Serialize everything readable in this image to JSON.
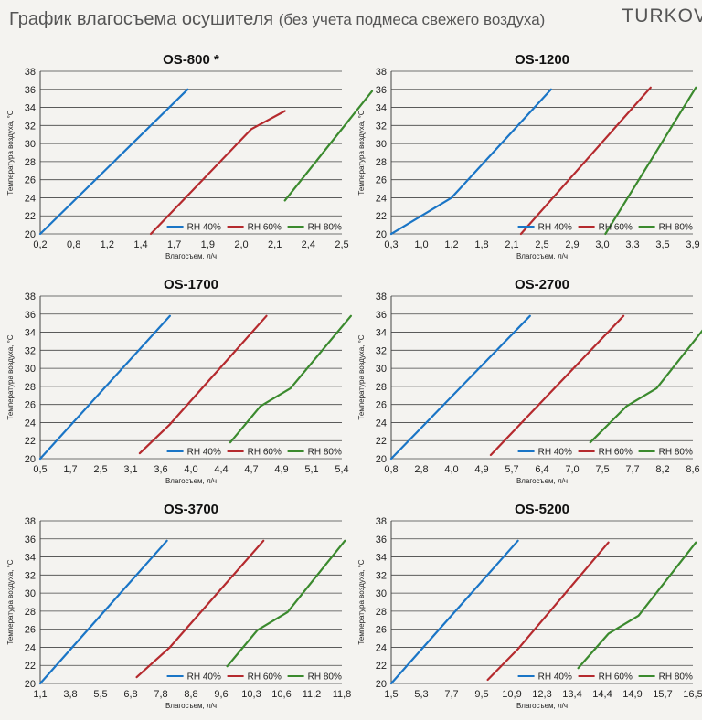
{
  "header": {
    "title": "График влагосъема осушителя",
    "subtitle": "(без учета подмеса свежего воздуха)",
    "brand": "TURKOV"
  },
  "colors": {
    "rh40": "#1a75c6",
    "rh60": "#b52a2e",
    "rh80": "#3b8a2e",
    "grid": "#444444"
  },
  "chart_data": [
    {
      "type": "line",
      "title": "OS-800 *",
      "xlabel": "Влагосъем, л/ч",
      "ylabel": "Температура воздуха, °С",
      "x_ticks": [
        "0,2",
        "0,8",
        "1,2",
        "1,4",
        "1,7",
        "1,9",
        "2,0",
        "2,1",
        "2,4",
        "2,5"
      ],
      "y_ticks": [
        20,
        22,
        24,
        26,
        28,
        30,
        32,
        34,
        36,
        38
      ],
      "ylim": [
        20,
        38
      ],
      "legend": [
        "RH 40%",
        "RH 60%",
        "RH 80%"
      ],
      "series": [
        {
          "name": "RH 40%",
          "points": [
            [
              0,
              20
            ],
            [
              4.4,
              36
            ]
          ]
        },
        {
          "name": "RH 60%",
          "points": [
            [
              3.3,
              20
            ],
            [
              6.3,
              31.6
            ],
            [
              7.3,
              33.6
            ]
          ]
        },
        {
          "name": "RH 80%",
          "points": [
            [
              7.3,
              23.7
            ],
            [
              9.9,
              35.8
            ]
          ]
        }
      ]
    },
    {
      "type": "line",
      "title": "OS-1200",
      "xlabel": "Влагосъем, л/ч",
      "ylabel": "Температура воздуха, °С",
      "x_ticks": [
        "0,3",
        "1,0",
        "1,2",
        "1,8",
        "2,1",
        "2,5",
        "2,9",
        "3,0",
        "3,3",
        "3,5",
        "3,9"
      ],
      "y_ticks": [
        20,
        22,
        24,
        26,
        28,
        30,
        32,
        34,
        36,
        38
      ],
      "ylim": [
        20,
        38
      ],
      "legend": [
        "RH 40%",
        "RH 60%",
        "RH 80%"
      ],
      "series": [
        {
          "name": "RH 40%",
          "points": [
            [
              0,
              20
            ],
            [
              2,
              24
            ],
            [
              5.3,
              36
            ]
          ]
        },
        {
          "name": "RH 60%",
          "points": [
            [
              4.3,
              20
            ],
            [
              8.6,
              36.2
            ]
          ]
        },
        {
          "name": "RH 80%",
          "points": [
            [
              7.1,
              20
            ],
            [
              10.1,
              36.2
            ]
          ]
        }
      ]
    },
    {
      "type": "line",
      "title": "OS-1700",
      "xlabel": "Влагосъем, л/ч",
      "ylabel": "Температура воздуха, °С",
      "x_ticks": [
        "0,5",
        "1,7",
        "2,5",
        "3,1",
        "3,6",
        "4,0",
        "4,4",
        "4,7",
        "4,9",
        "5,1",
        "5,4"
      ],
      "y_ticks": [
        20,
        22,
        24,
        26,
        28,
        30,
        32,
        34,
        36,
        38
      ],
      "ylim": [
        20,
        38
      ],
      "legend": [
        "RH 40%",
        "RH 60%",
        "RH 80%"
      ],
      "series": [
        {
          "name": "RH 40%",
          "points": [
            [
              0,
              20
            ],
            [
              4.3,
              35.8
            ]
          ]
        },
        {
          "name": "RH 60%",
          "points": [
            [
              3.3,
              20.6
            ],
            [
              4.3,
              23.8
            ],
            [
              7.5,
              35.8
            ]
          ]
        },
        {
          "name": "RH 80%",
          "points": [
            [
              6.3,
              21.8
            ],
            [
              7.3,
              25.8
            ],
            [
              8.3,
              27.8
            ],
            [
              10.3,
              35.8
            ]
          ]
        }
      ]
    },
    {
      "type": "line",
      "title": "OS-2700",
      "xlabel": "Влагосъем, л/ч",
      "ylabel": "Температура воздуха, °С",
      "x_ticks": [
        "0,8",
        "2,8",
        "4,0",
        "4,9",
        "5,7",
        "6,4",
        "7,0",
        "7,5",
        "7,7",
        "8,2",
        "8,6"
      ],
      "y_ticks": [
        20,
        22,
        24,
        26,
        28,
        30,
        32,
        34,
        36,
        38
      ],
      "ylim": [
        20,
        38
      ],
      "legend": [
        "RH 40%",
        "RH 60%",
        "RH 80%"
      ],
      "series": [
        {
          "name": "RH 40%",
          "points": [
            [
              0,
              20
            ],
            [
              4.6,
              35.8
            ]
          ]
        },
        {
          "name": "RH 60%",
          "points": [
            [
              3.3,
              20.4
            ],
            [
              7.7,
              35.8
            ]
          ]
        },
        {
          "name": "RH 80%",
          "points": [
            [
              6.6,
              21.8
            ],
            [
              7.8,
              25.8
            ],
            [
              8.8,
              27.8
            ],
            [
              10.7,
              35.8
            ]
          ]
        }
      ]
    },
    {
      "type": "line",
      "title": "OS-3700",
      "xlabel": "Влагосъем, л/ч",
      "ylabel": "Температура воздуха, °С",
      "x_ticks": [
        "1,1",
        "3,8",
        "5,5",
        "6,8",
        "7,8",
        "8,8",
        "9,6",
        "10,3",
        "10,6",
        "11,2",
        "11,8"
      ],
      "y_ticks": [
        20,
        22,
        24,
        26,
        28,
        30,
        32,
        34,
        36,
        38
      ],
      "ylim": [
        20,
        38
      ],
      "legend": [
        "RH 40%",
        "RH 60%",
        "RH 80%"
      ],
      "series": [
        {
          "name": "RH 40%",
          "points": [
            [
              0,
              20
            ],
            [
              4.2,
              35.8
            ]
          ]
        },
        {
          "name": "RH 60%",
          "points": [
            [
              3.2,
              20.7
            ],
            [
              4.3,
              24
            ],
            [
              7.4,
              35.8
            ]
          ]
        },
        {
          "name": "RH 80%",
          "points": [
            [
              6.2,
              21.9
            ],
            [
              7.2,
              25.9
            ],
            [
              8.2,
              27.9
            ],
            [
              10.1,
              35.8
            ]
          ]
        }
      ]
    },
    {
      "type": "line",
      "title": "OS-5200",
      "xlabel": "Влагосъем, л/ч",
      "ylabel": "Температура воздуха, °С",
      "x_ticks": [
        "1,5",
        "5,3",
        "7,7",
        "9,5",
        "10,9",
        "12,3",
        "13,4",
        "14,4",
        "14,9",
        "15,7",
        "16,5"
      ],
      "y_ticks": [
        20,
        22,
        24,
        26,
        28,
        30,
        32,
        34,
        36,
        38
      ],
      "ylim": [
        20,
        38
      ],
      "legend": [
        "RH 40%",
        "RH 60%",
        "RH 80%"
      ],
      "series": [
        {
          "name": "RH 40%",
          "points": [
            [
              0,
              20
            ],
            [
              4.2,
              35.8
            ]
          ]
        },
        {
          "name": "RH 60%",
          "points": [
            [
              3.2,
              20.4
            ],
            [
              4.2,
              23.8
            ],
            [
              7.2,
              35.6
            ]
          ]
        },
        {
          "name": "RH 80%",
          "points": [
            [
              6.2,
              21.7
            ],
            [
              7.2,
              25.5
            ],
            [
              8.2,
              27.5
            ],
            [
              10.1,
              35.6
            ]
          ]
        }
      ]
    }
  ]
}
